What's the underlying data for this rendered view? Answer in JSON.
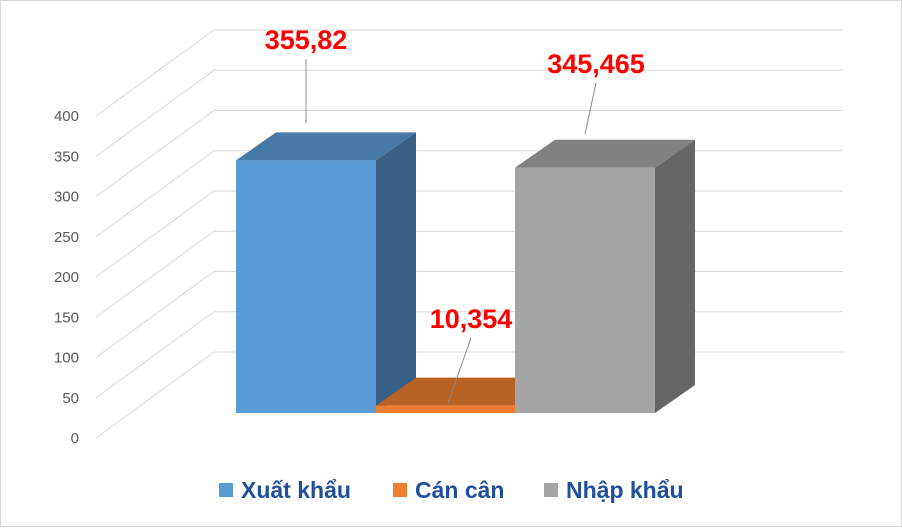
{
  "chart_data": {
    "type": "bar",
    "title": "",
    "xlabel": "",
    "ylabel": "",
    "categories": [
      "Xuất khẩu",
      "Cán cân",
      "Nhập khẩu"
    ],
    "values": [
      355.82,
      10.354,
      345.465
    ],
    "value_labels": [
      "355,82",
      "10,354",
      "345,465"
    ],
    "ylim": [
      0,
      400
    ],
    "yticks": [
      "0",
      "50",
      "100",
      "150",
      "200",
      "250",
      "300",
      "350",
      "400"
    ],
    "grid": true,
    "legend_position": "bottom",
    "colors": {
      "Xuất khẩu": "#5b9bd5",
      "Cán cân": "#ed7d31",
      "Nhập khẩu": "#a5a5a5"
    }
  }
}
